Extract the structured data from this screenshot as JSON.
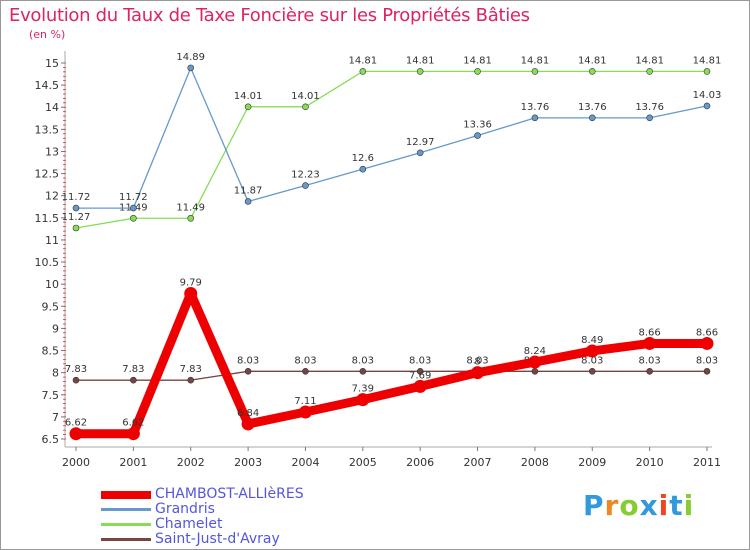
{
  "title": "Evolution du Taux de Taxe Foncière sur les Propriétés Bâties",
  "unit": "(en %)",
  "brand": {
    "text": "Proxiti",
    "colors": [
      "#3399dd",
      "#ee8822",
      "#88cc33",
      "#3399dd",
      "#ee4422",
      "#3399dd",
      "#88cc33"
    ]
  },
  "chart_data": {
    "type": "line",
    "title": "Evolution du Taux de Taxe Foncière sur les Propriétés Bâties",
    "ylabel": "(en %)",
    "xlabel": "",
    "ylim": [
      6.5,
      15.0
    ],
    "yticks": [
      "6.5",
      "7",
      "7.5",
      "8",
      "8.5",
      "9",
      "9.5",
      "10",
      "10.5",
      "11",
      "11.5",
      "12",
      "12.5",
      "13",
      "13.5",
      "14",
      "14.5",
      "15"
    ],
    "categories": [
      "2000",
      "2001",
      "2002",
      "2003",
      "2004",
      "2005",
      "2006",
      "2007",
      "2008",
      "2009",
      "2010",
      "2011"
    ],
    "series": [
      {
        "name": "Saint-Just-d'Avray",
        "color": "#774444",
        "values": [
          7.83,
          7.83,
          7.83,
          8.03,
          8.03,
          8.03,
          8.03,
          8.03,
          8.03,
          8.03,
          8.03,
          8.03
        ],
        "labels": [
          "7.83",
          "7.83",
          "7.83",
          "8.03",
          "8.03",
          "8.03",
          "8.03",
          "8.03",
          "8.03",
          "8.03",
          "8.03",
          "8.03"
        ]
      },
      {
        "name": "Chamelet",
        "color": "#88dd55",
        "values": [
          11.27,
          11.49,
          11.49,
          14.01,
          14.01,
          14.81,
          14.81,
          14.81,
          14.81,
          14.81,
          14.81,
          14.81
        ],
        "labels": [
          "11.27",
          "11.49",
          "11.49",
          "14.01",
          "14.01",
          "14.81",
          "14.81",
          "14.81",
          "14.81",
          "14.81",
          "14.81",
          "14.81"
        ]
      },
      {
        "name": "Grandris",
        "color": "#6699cc",
        "values": [
          11.72,
          11.72,
          14.89,
          11.87,
          12.23,
          12.6,
          12.97,
          13.36,
          13.76,
          13.76,
          13.76,
          14.03
        ],
        "labels": [
          "11.72",
          "11.72",
          "14.89",
          "11.87",
          "12.23",
          "12.6",
          "12.97",
          "13.36",
          "13.76",
          "13.76",
          "13.76",
          "14.03"
        ]
      },
      {
        "name": "CHAMBOST-ALLIèRES",
        "color": "#ee0000",
        "values": [
          6.62,
          6.62,
          9.79,
          6.84,
          7.11,
          7.39,
          7.69,
          8.0,
          8.24,
          8.49,
          8.66,
          8.66
        ],
        "labels": [
          "6.62",
          "6.62",
          "9.79",
          "6.84",
          "7.11",
          "7.39",
          "7.69",
          "8",
          "8.24",
          "8.49",
          "8.66",
          "8.66"
        ]
      }
    ],
    "legend": [
      "CHAMBOST-ALLIèRES",
      "Grandris",
      "Chamelet",
      "Saint-Just-d'Avray"
    ],
    "legend_position": "bottom-left",
    "grid": false
  }
}
